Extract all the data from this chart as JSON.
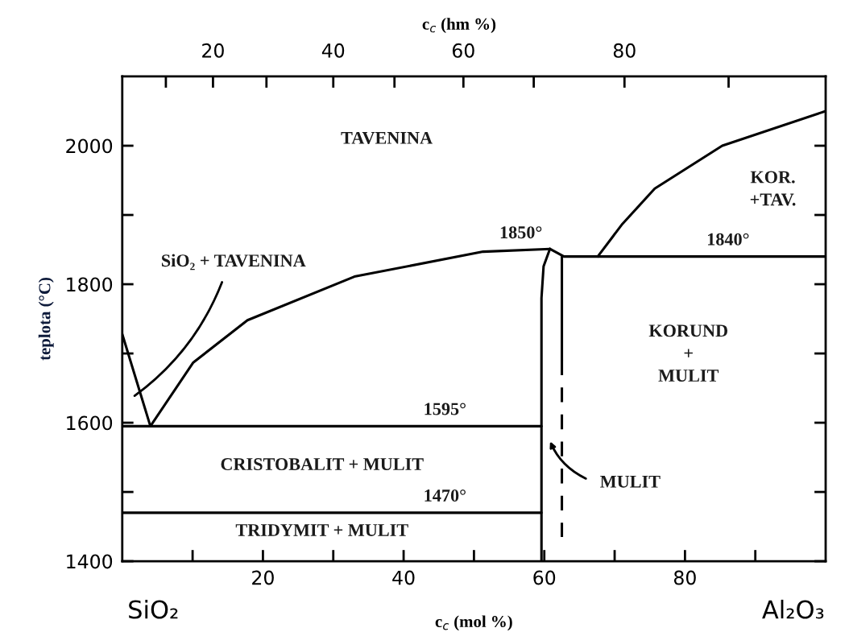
{
  "chart_data": {
    "type": "line",
    "xlabel": "c$_{c}$ (mol %)",
    "ylabel": "teplota (°C)",
    "xlim": [
      0,
      100
    ],
    "xticks": [
      {
        "value": 10,
        "label": null
      },
      20,
      {
        "value": 30,
        "label": null
      },
      40,
      {
        "value": 50,
        "label": null
      },
      60,
      {
        "value": 70,
        "label": null
      },
      80,
      {
        "value": 90,
        "label": null
      }
    ],
    "ylim": [
      1400,
      2100
    ],
    "yticks": [
      1400,
      {
        "value": 1500,
        "label": null
      },
      1600,
      {
        "value": 1700,
        "label": null
      },
      1800,
      {
        "value": 1900,
        "label": null
      },
      2000
    ],
    "grid": false,
    "legend": false,
    "marker": "none",
    "line_style": "solid",
    "series": [
      {
        "x": [
          0,
          4
        ],
        "values": [
          1728,
          1595
        ],
        "color": "#000000"
      },
      {
        "x": [
          4,
          10.1,
          17.8,
          33,
          51.3,
          60.8
        ],
        "values": [
          1595,
          1687,
          1748,
          1811,
          1847,
          1851
        ],
        "color": "#000000"
      },
      {
        "x": [
          60.8,
          59.9,
          59.6,
          59.6
        ],
        "values": [
          1851,
          1826,
          1780,
          1400
        ],
        "color": "#000000"
      },
      {
        "x": [
          60.8,
          62.8,
          100
        ],
        "values": [
          1851,
          1840,
          1840
        ],
        "color": "#000000"
      },
      {
        "x": [
          62.5,
          62.5
        ],
        "values": [
          1840,
          1690
        ],
        "color": "#000000"
      },
      {
        "x": [
          62.5,
          62.5
        ],
        "values": [
          1690,
          1435
        ],
        "color": "#000000",
        "line_style": "dashed"
      },
      {
        "x": [
          67.6,
          71.1,
          75.7,
          85.3,
          100
        ],
        "values": [
          1840,
          1887,
          1938,
          2000,
          2050
        ],
        "color": "#000000"
      },
      {
        "x": [
          0,
          59.6
        ],
        "values": [
          1595,
          1595
        ],
        "color": "#000000"
      },
      {
        "x": [
          0,
          59.6
        ],
        "values": [
          1470,
          1470
        ],
        "color": "#000000"
      }
    ],
    "annotations": [
      "TAVENINA",
      "SiO₂ + TAVENINA",
      {
        "text": "1850°",
        "x": 61,
        "y": 1850
      },
      "KOR.\n+TAV.",
      {
        "text": "1840°",
        "x": 87.4,
        "y": 1840
      },
      "KORUND\n+\nMULIT",
      {
        "text": "1595°",
        "x": 50.2,
        "y": 1595
      },
      "CRISTOBALIT + MULIT",
      {
        "text": "1470°",
        "x": 50.2,
        "y": 1470
      },
      "TRIDYMIT + MULIT",
      "MULIT",
      "SiO₂",
      "Al₂O₃",
      "c$_{c}$ (hm %)",
      "20",
      "40",
      "60",
      "80"
    ]
  }
}
